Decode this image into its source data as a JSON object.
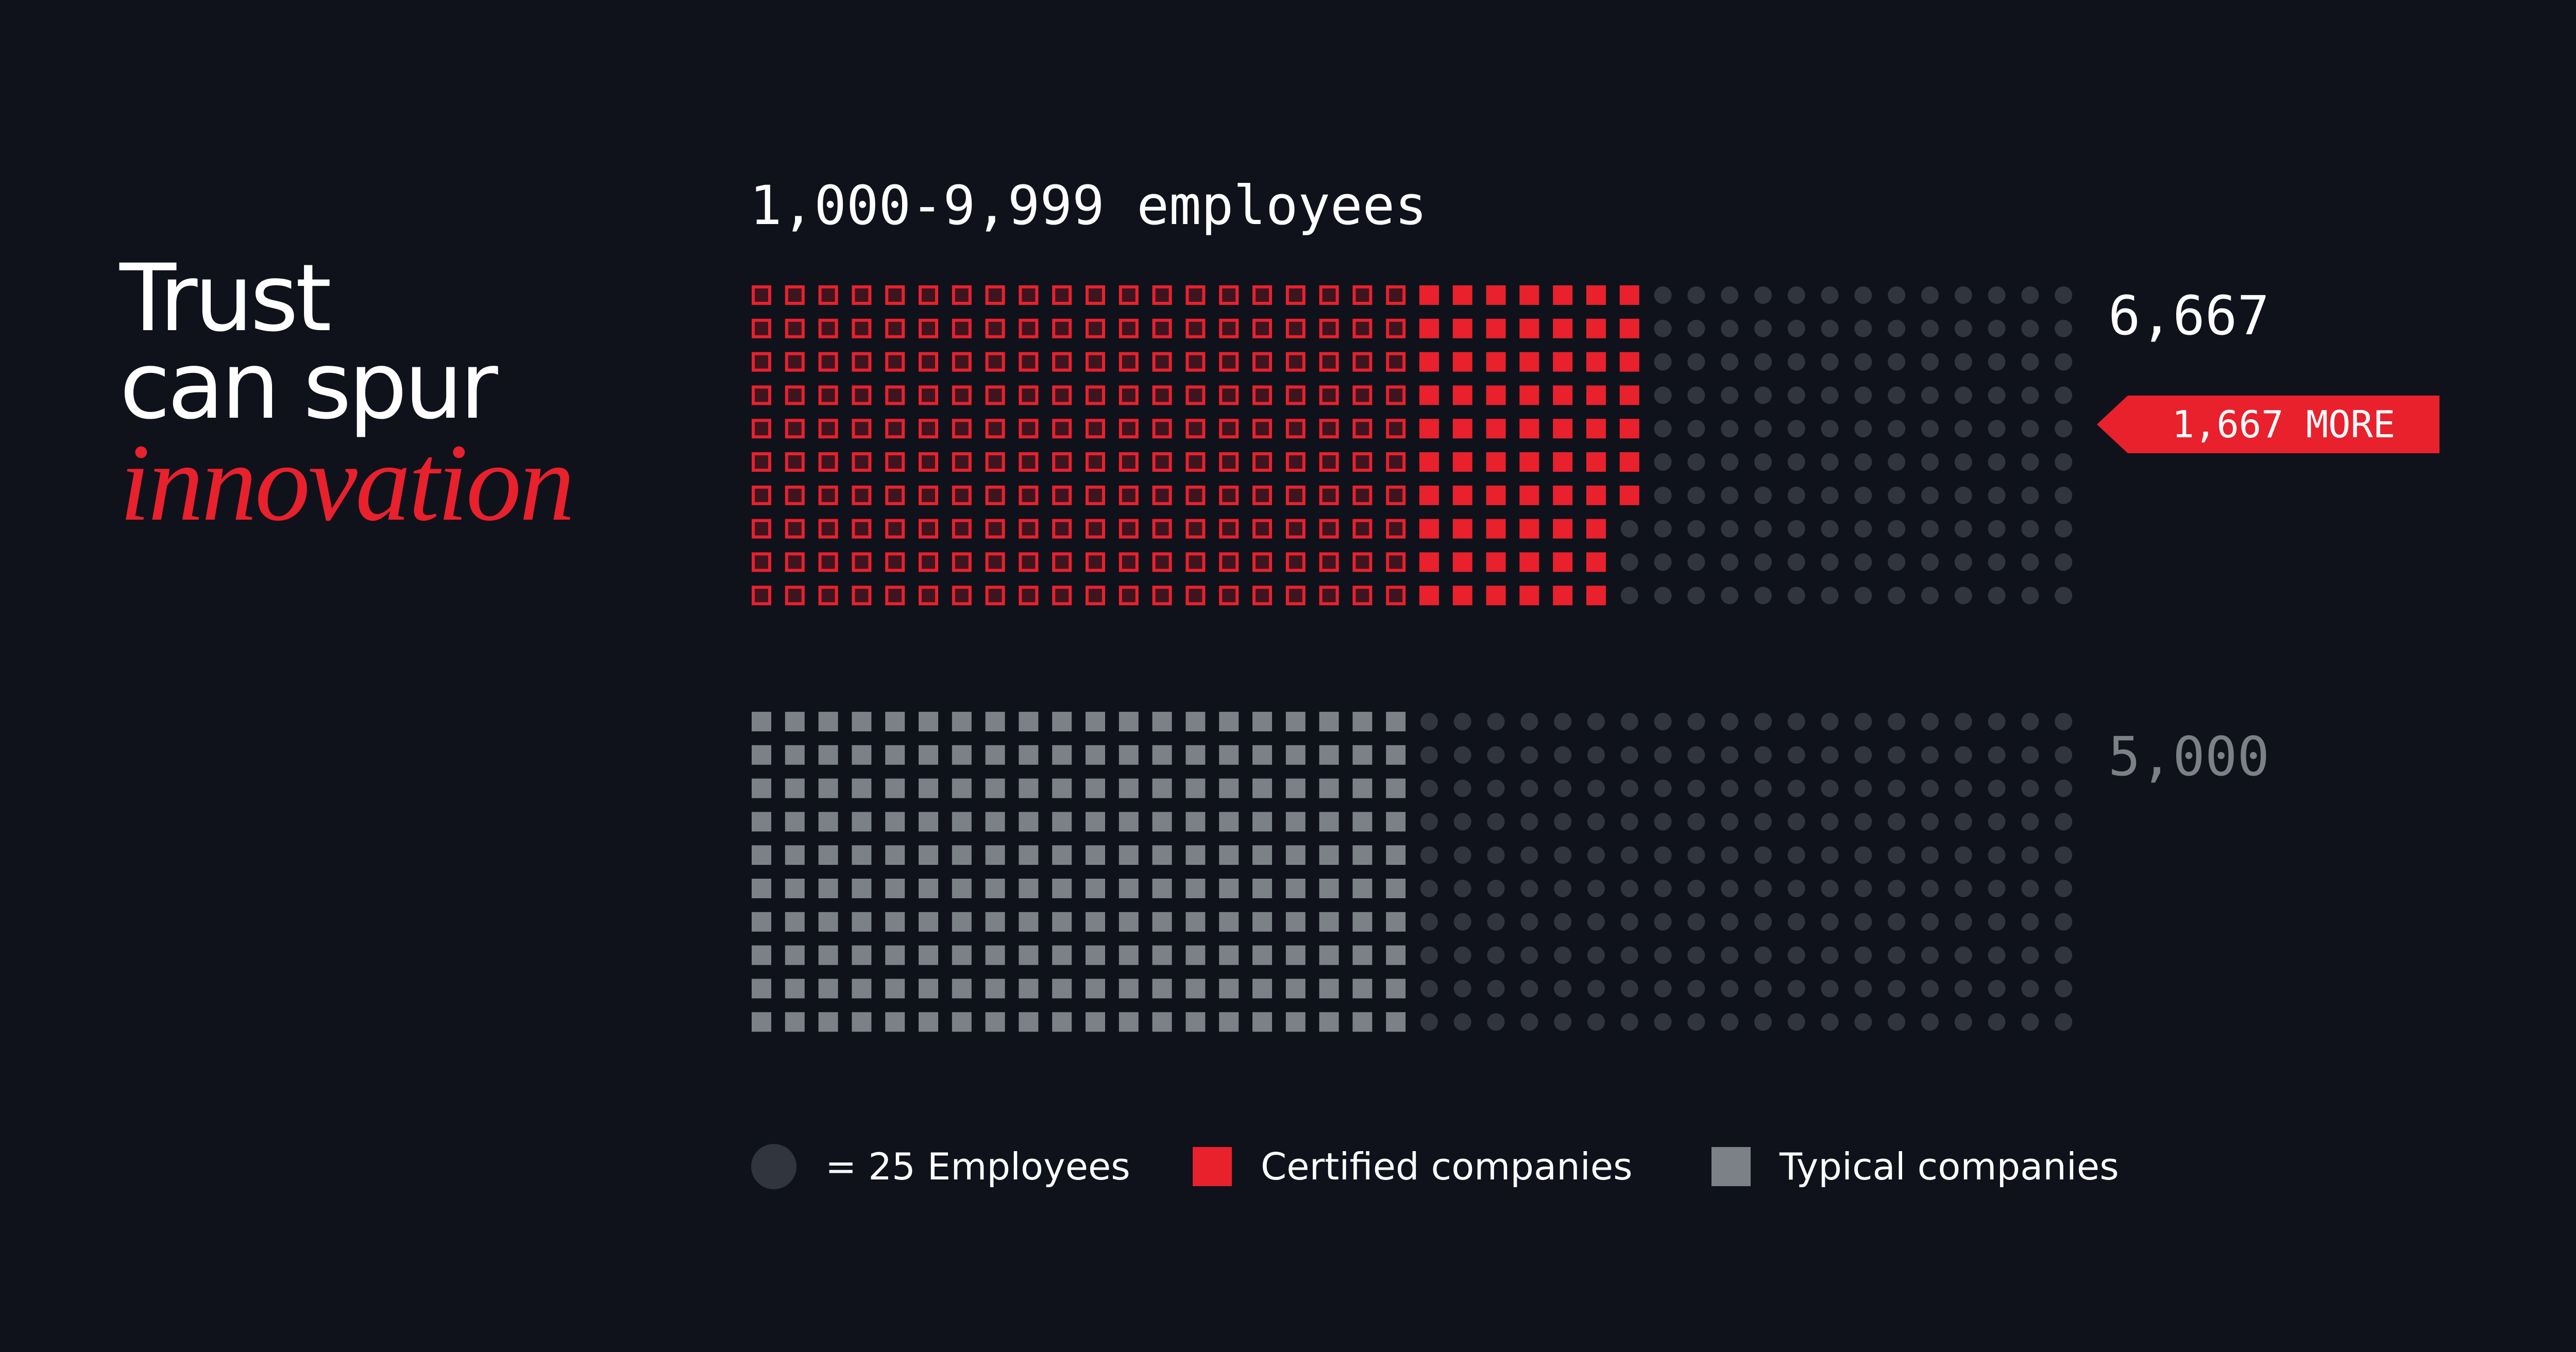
{
  "headline": {
    "line1": "Trust",
    "line2": "can spur",
    "line3": "innovation"
  },
  "colors": {
    "background": "#0f121b",
    "certified": "#e8212d",
    "typical": "#7b8187",
    "unit_dot": "#30353e"
  },
  "chart_data": {
    "type": "waffle",
    "title": "1,000-9,999 employees",
    "unit_value": 25,
    "unit_label": "= 25 Employees",
    "series": [
      {
        "name": "Certified companies",
        "value": 6667,
        "value_label": "6,667"
      },
      {
        "name": "Typical companies",
        "value": 5000,
        "value_label": "5,000"
      }
    ],
    "difference": {
      "value": 1667,
      "label": "1,667 MORE"
    },
    "legend": [
      "= 25 Employees",
      "Certified companies",
      "Typical companies"
    ]
  }
}
